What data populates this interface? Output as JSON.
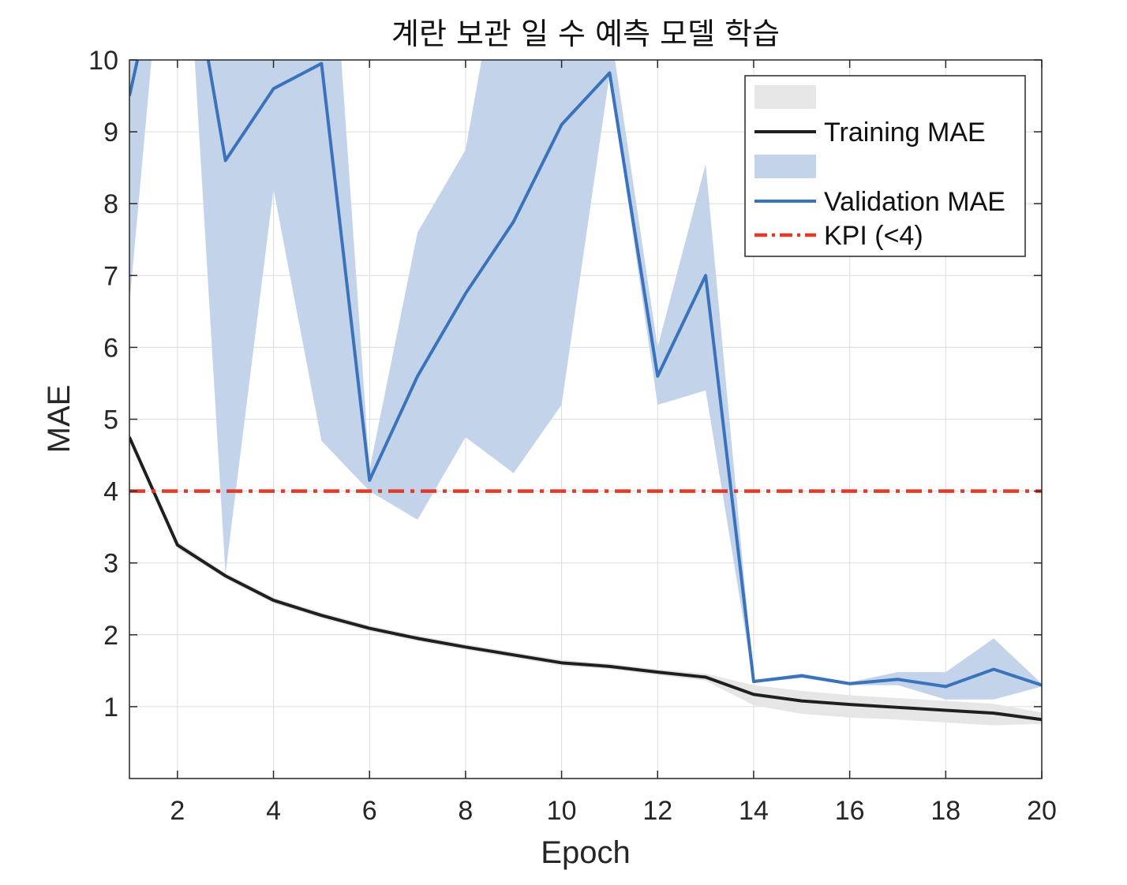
{
  "chart_data": {
    "type": "line",
    "title": "계란 보관 일 수 예측 모델 학습",
    "xlabel": "Epoch",
    "ylabel": "MAE",
    "xlim": [
      1,
      20
    ],
    "ylim": [
      0,
      10
    ],
    "xticks": [
      2,
      4,
      6,
      8,
      10,
      12,
      14,
      16,
      18,
      20
    ],
    "yticks": [
      1,
      2,
      3,
      4,
      5,
      6,
      7,
      8,
      9,
      10
    ],
    "grid": true,
    "legend_position": "top-right",
    "x": [
      1,
      2,
      3,
      4,
      5,
      6,
      7,
      8,
      9,
      10,
      11,
      12,
      13,
      14,
      15,
      16,
      17,
      18,
      19,
      20
    ],
    "series": [
      {
        "name": "Training MAE",
        "color": "#1f1f1f",
        "values": [
          4.75,
          3.25,
          2.82,
          2.48,
          2.27,
          2.09,
          1.95,
          1.83,
          1.72,
          1.61,
          1.56,
          1.48,
          1.41,
          1.17,
          1.08,
          1.03,
          0.99,
          0.95,
          0.91,
          0.82
        ],
        "band_lower": [
          4.7,
          3.2,
          2.78,
          2.44,
          2.23,
          2.05,
          1.91,
          1.79,
          1.68,
          1.57,
          1.52,
          1.44,
          1.36,
          1.02,
          0.9,
          0.85,
          0.82,
          0.78,
          0.74,
          0.76
        ],
        "band_upper": [
          4.8,
          3.3,
          2.86,
          2.52,
          2.31,
          2.13,
          1.99,
          1.87,
          1.76,
          1.65,
          1.6,
          1.52,
          1.46,
          1.3,
          1.22,
          1.16,
          1.12,
          1.08,
          1.04,
          0.92
        ],
        "band_color": "#e6e6e6"
      },
      {
        "name": "Validation MAE",
        "color": "#3a73bc",
        "values": [
          9.5,
          12.5,
          8.6,
          9.6,
          9.95,
          4.15,
          5.6,
          6.75,
          7.75,
          9.1,
          9.82,
          5.6,
          7.0,
          1.35,
          1.43,
          1.32,
          1.38,
          1.28,
          1.52,
          1.3
        ],
        "band_lower": [
          6.6,
          14.0,
          2.85,
          8.2,
          4.7,
          4.0,
          3.6,
          4.75,
          4.25,
          5.2,
          9.8,
          5.2,
          5.4,
          1.33,
          1.4,
          1.3,
          1.3,
          1.1,
          1.1,
          1.28
        ],
        "band_upper": [
          12.5,
          14.0,
          14.0,
          11.2,
          14.0,
          4.3,
          7.6,
          8.75,
          12.5,
          12.5,
          10.5,
          6.0,
          8.55,
          1.37,
          1.46,
          1.34,
          1.48,
          1.48,
          1.95,
          1.32
        ],
        "band_color": "#c3d4ea"
      }
    ],
    "reference_line": {
      "name": "KPI (<4)",
      "y": 4,
      "color": "#e03a2a",
      "style": "dash-dot"
    }
  }
}
